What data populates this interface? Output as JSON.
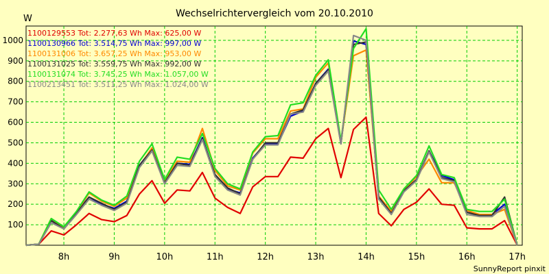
{
  "chart_data": {
    "type": "line",
    "title": "Wechselrichtervergleich vom 20.10.2010",
    "ylabel": "W",
    "footer": "SunnyReport pinxit",
    "ylim": [
      0,
      1070
    ],
    "xlim": [
      7.25,
      17.1
    ],
    "yticks": [
      100,
      200,
      300,
      400,
      500,
      600,
      700,
      800,
      900,
      1000
    ],
    "xticks": [
      {
        "value": 8,
        "label": "8h"
      },
      {
        "value": 9,
        "label": "9h"
      },
      {
        "value": 10,
        "label": "10h"
      },
      {
        "value": 11,
        "label": "11h"
      },
      {
        "value": 12,
        "label": "12h"
      },
      {
        "value": 13,
        "label": "13h"
      },
      {
        "value": 14,
        "label": "14h"
      },
      {
        "value": 15,
        "label": "15h"
      },
      {
        "value": 16,
        "label": "16h"
      },
      {
        "value": 17,
        "label": "17h"
      }
    ],
    "grid": true,
    "x": [
      7.25,
      7.5,
      7.75,
      8.0,
      8.25,
      8.5,
      8.75,
      9.0,
      9.25,
      9.5,
      9.75,
      10.0,
      10.25,
      10.5,
      10.75,
      11.0,
      11.25,
      11.5,
      11.75,
      12.0,
      12.25,
      12.5,
      12.75,
      13.0,
      13.25,
      13.5,
      13.75,
      14.0,
      14.25,
      14.5,
      14.75,
      15.0,
      15.25,
      15.5,
      15.75,
      16.0,
      16.25,
      16.5,
      16.75,
      17.0
    ],
    "series": [
      {
        "name": "1100129553",
        "legend": "1100129553 Tot: 2.277,63 Wh Max: 625,00 W",
        "color": "#e00000",
        "values": [
          0,
          5,
          70,
          50,
          100,
          155,
          125,
          115,
          145,
          250,
          315,
          205,
          270,
          265,
          355,
          230,
          185,
          155,
          285,
          335,
          335,
          430,
          425,
          520,
          570,
          330,
          565,
          625,
          155,
          95,
          175,
          210,
          275,
          200,
          195,
          85,
          80,
          80,
          120,
          0
        ]
      },
      {
        "name": "1100130966",
        "legend": "1100130966 Tot: 3.514,75 Wh Max: 997,00 W",
        "color": "#0000d0",
        "values": [
          0,
          5,
          120,
          85,
          160,
          235,
          200,
          180,
          215,
          390,
          470,
          310,
          400,
          395,
          525,
          340,
          275,
          255,
          425,
          495,
          495,
          630,
          655,
          790,
          860,
          495,
          997,
          980,
          230,
          155,
          265,
          320,
          460,
          340,
          320,
          160,
          150,
          150,
          200,
          0
        ]
      },
      {
        "name": "1100131006",
        "legend": "1100131006 Tot: 3.657,25 Wh Max: 953,00 W",
        "color": "#ff8800",
        "values": [
          0,
          5,
          130,
          85,
          160,
          255,
          215,
          190,
          230,
          385,
          475,
          315,
          410,
          405,
          570,
          365,
          290,
          270,
          450,
          520,
          520,
          655,
          665,
          820,
          890,
          505,
          925,
          953,
          240,
          165,
          265,
          335,
          420,
          305,
          305,
          170,
          150,
          150,
          175,
          0
        ]
      },
      {
        "name": "1100131025",
        "legend": "1100131025 Tot: 3.559,75 Wh Max: 992,00 W",
        "color": "#303030",
        "values": [
          0,
          5,
          120,
          80,
          155,
          235,
          205,
          175,
          210,
          390,
          465,
          305,
          400,
          390,
          520,
          345,
          280,
          250,
          420,
          500,
          500,
          640,
          660,
          790,
          855,
          500,
          980,
          992,
          235,
          155,
          265,
          320,
          460,
          330,
          315,
          160,
          145,
          145,
          235,
          0
        ]
      },
      {
        "name": "1100131074",
        "legend": "1100131074 Tot: 3.745,25 Wh Max: 1.057,00 W",
        "color": "#22dd22",
        "values": [
          0,
          5,
          130,
          90,
          165,
          260,
          220,
          195,
          240,
          410,
          495,
          320,
          430,
          420,
          545,
          375,
          300,
          275,
          455,
          530,
          535,
          685,
          695,
          830,
          905,
          510,
          960,
          1057,
          270,
          175,
          275,
          340,
          485,
          345,
          330,
          175,
          165,
          165,
          225,
          0
        ]
      },
      {
        "name": "1100213451",
        "legend": "1100213451 Tot: 3.511,25 Wh Max: 1.024,00 W",
        "color": "#888888",
        "values": [
          0,
          5,
          110,
          80,
          150,
          225,
          195,
          170,
          205,
          380,
          460,
          300,
          390,
          385,
          515,
          335,
          270,
          245,
          420,
          490,
          490,
          640,
          650,
          780,
          850,
          495,
          1024,
          1000,
          225,
          150,
          260,
          315,
          455,
          325,
          310,
          150,
          140,
          140,
          190,
          0
        ]
      }
    ]
  }
}
